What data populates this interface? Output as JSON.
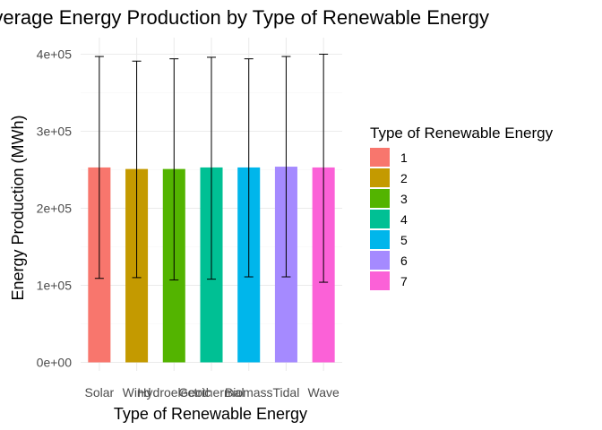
{
  "chart_data": {
    "type": "bar",
    "title": "Average Energy Production by Type of Renewable Energy",
    "xlabel": "Type of Renewable Energy",
    "ylabel": "Energy Production (MWh)",
    "categories": [
      "Solar",
      "Wind",
      "Hydroelectric",
      "Geothermal",
      "Biomass",
      "Tidal",
      "Wave"
    ],
    "values": [
      253000,
      251000,
      251000,
      253000,
      253000,
      254000,
      253000
    ],
    "error_low": [
      109000,
      110000,
      107000,
      108000,
      111000,
      111000,
      104000
    ],
    "error_high": [
      397000,
      391000,
      394000,
      396000,
      394000,
      397000,
      400000
    ],
    "ylim": [
      0,
      415000
    ],
    "y_ticks": [
      0,
      100000,
      200000,
      300000,
      400000
    ],
    "y_tick_labels": [
      "0e+00",
      "1e+05",
      "2e+05",
      "3e+05",
      "4e+05"
    ],
    "grid": true,
    "legend": {
      "title": "Type of Renewable Energy",
      "placement": "right",
      "entries": [
        "1",
        "2",
        "3",
        "4",
        "5",
        "6",
        "7"
      ]
    },
    "colors": [
      "#F8766D",
      "#C49A00",
      "#53B400",
      "#00C094",
      "#00B6EB",
      "#A58AFF",
      "#FB61D7"
    ]
  }
}
